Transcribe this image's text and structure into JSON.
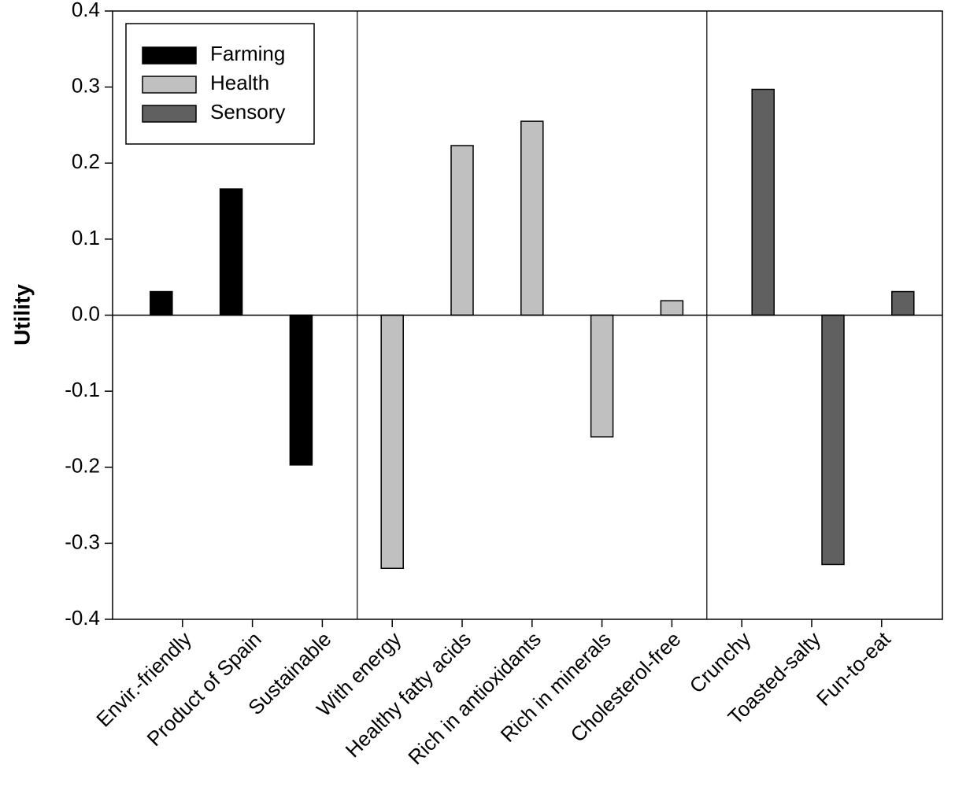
{
  "chart_data": {
    "type": "bar",
    "y_label": "Utility",
    "categories": [
      "Envir.-friendly",
      "Product of Spain",
      "Sustainable",
      "With energy",
      "Healthy fatty acids",
      "Rich in antioxidants",
      "Rich in minerals",
      "Cholesterol-free",
      "Crunchy",
      "Toasted-salty",
      "Fun-to-eat"
    ],
    "series": [
      {
        "name": "Farming",
        "color": "#000000",
        "values": [
          0.031,
          0.166,
          -0.197,
          null,
          null,
          null,
          null,
          null,
          null,
          null,
          null
        ]
      },
      {
        "name": "Health",
        "color": "#c0c0c0",
        "values": [
          null,
          null,
          null,
          -0.333,
          0.223,
          0.255,
          -0.16,
          0.019,
          null,
          null,
          null
        ]
      },
      {
        "name": "Sensory",
        "color": "#606060",
        "values": [
          null,
          null,
          null,
          null,
          null,
          null,
          null,
          null,
          0.297,
          -0.328,
          0.031
        ]
      }
    ],
    "ylim": [
      -0.4,
      0.4
    ],
    "yticks": [
      -0.4,
      -0.3,
      -0.2,
      -0.1,
      {
        "value": 0,
        "label": "0.0"
      },
      0.1,
      0.2,
      0.3,
      0.4
    ],
    "legend": "top-left"
  }
}
